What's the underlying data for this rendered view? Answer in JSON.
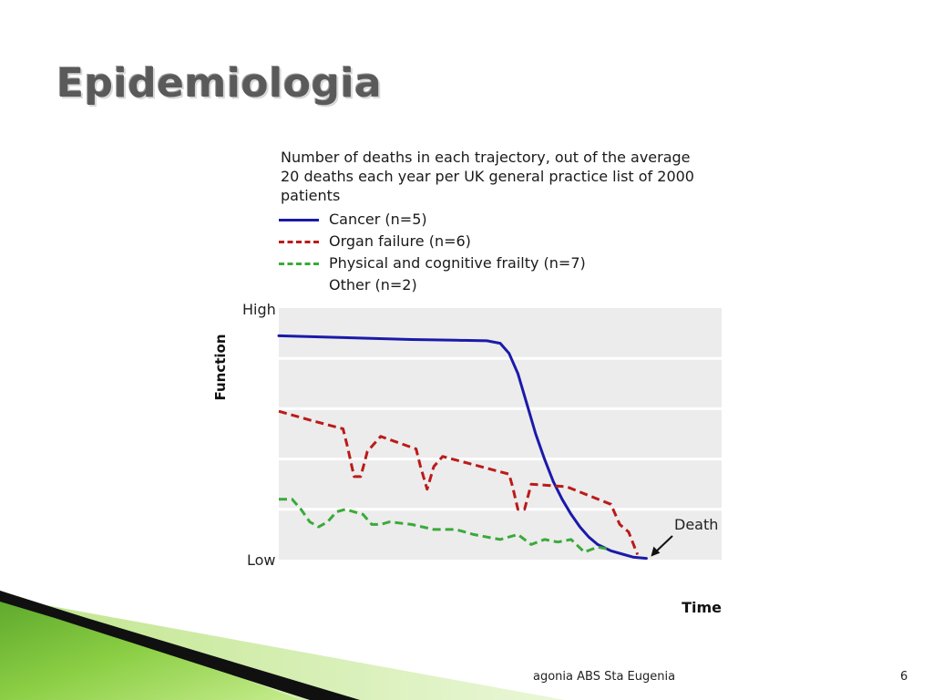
{
  "slide": {
    "title": "Epidemiologia",
    "footer": "agonia ABS Sta Eugenia",
    "page_number": "6"
  },
  "chart_data": {
    "type": "line",
    "title": "Number of deaths in each trajectory, out of the average 20 deaths each year per UK general practice list of 2000 patients",
    "xlabel": "Time",
    "ylabel": "Function",
    "y_tick_labels": [
      "High",
      "Low"
    ],
    "annotation": "Death",
    "ylim": [
      0,
      100
    ],
    "xlim": [
      0,
      100
    ],
    "grid": true,
    "series": [
      {
        "name": "Cancer (n=5)",
        "color": "#1a1aaa",
        "style": "solid",
        "x": [
          0,
          10,
          20,
          30,
          40,
          47,
          50,
          52,
          54,
          56,
          58,
          60,
          62,
          64,
          66,
          68,
          70,
          72,
          75,
          78,
          80,
          83
        ],
        "y": [
          89,
          88.5,
          88,
          87.5,
          87.2,
          87,
          86,
          82,
          74,
          62,
          50,
          40,
          31,
          24,
          18,
          13,
          9,
          6,
          3.5,
          2,
          1,
          0.5
        ]
      },
      {
        "name": "Organ failure (n=6)",
        "color": "#bb1a1a",
        "style": "dashed",
        "x": [
          0,
          8,
          14.5,
          15.5,
          17,
          18.5,
          20,
          23,
          31,
          32,
          33.5,
          35,
          37,
          52,
          52.8,
          54,
          55.5,
          57,
          65,
          75,
          77,
          79,
          81
        ],
        "y": [
          59,
          55,
          52,
          45,
          33,
          33,
          43,
          49,
          44,
          37,
          28,
          37,
          41,
          34,
          29,
          20,
          20,
          30,
          29,
          22,
          14,
          11,
          2
        ]
      },
      {
        "name": "Physical and cognitive frailty (n=7)",
        "color": "#3aaa3a",
        "style": "dashed",
        "x": [
          0,
          3,
          5,
          7,
          9,
          11,
          13,
          15,
          17,
          19,
          21,
          23,
          25,
          30,
          35,
          40,
          44,
          47,
          50,
          54,
          57,
          60,
          63,
          66,
          69,
          72,
          75
        ],
        "y": [
          24,
          24,
          20,
          15,
          13,
          15,
          19,
          20,
          19,
          18,
          14,
          14,
          15,
          14,
          12,
          12,
          10,
          9,
          8,
          10,
          6,
          8,
          7,
          8,
          3,
          5,
          4
        ]
      },
      {
        "name": "Other (n=2)",
        "color": "",
        "style": "none",
        "x": [],
        "y": []
      }
    ]
  }
}
